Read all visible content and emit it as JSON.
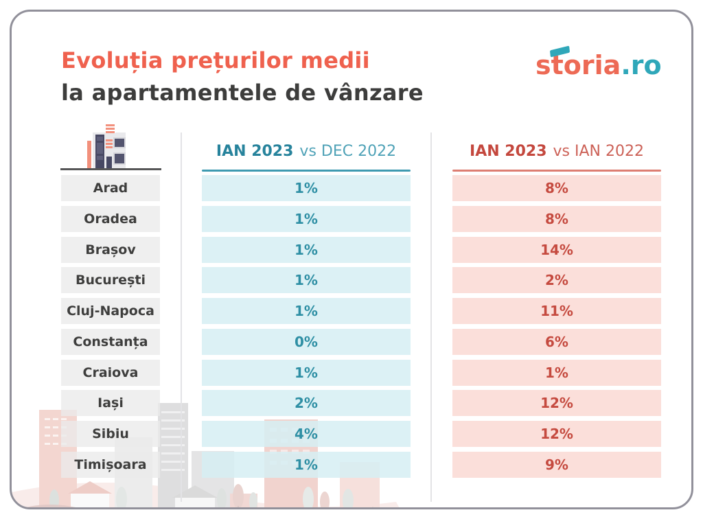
{
  "title": {
    "line1": "Evoluția prețurilor medii",
    "line2": "la apartamentele de vânzare"
  },
  "logo": {
    "brand": "storia",
    "tld": ".ro"
  },
  "table": {
    "col1_header": {
      "bold": "IAN 2023",
      "rest": "vs DEC 2022"
    },
    "col2_header": {
      "bold": "IAN 2023",
      "rest": "vs IAN 2022"
    }
  },
  "rows": [
    {
      "city": "Arad",
      "mom": "1%",
      "yoy": "8%"
    },
    {
      "city": "Oradea",
      "mom": "1%",
      "yoy": "8%"
    },
    {
      "city": "Brașov",
      "mom": "1%",
      "yoy": "14%"
    },
    {
      "city": "București",
      "mom": "1%",
      "yoy": "2%"
    },
    {
      "city": "Cluj-Napoca",
      "mom": "1%",
      "yoy": "11%"
    },
    {
      "city": "Constanța",
      "mom": "0%",
      "yoy": "6%"
    },
    {
      "city": "Craiova",
      "mom": "1%",
      "yoy": "1%"
    },
    {
      "city": "Iași",
      "mom": "2%",
      "yoy": "12%"
    },
    {
      "city": "Sibiu",
      "mom": "4%",
      "yoy": "12%"
    },
    {
      "city": "Timișoara",
      "mom": "1%",
      "yoy": "9%"
    }
  ],
  "colors": {
    "title_accent": "#ef614e",
    "title_dark": "#3d3d3c",
    "logo_coral": "#ed6a55",
    "logo_teal": "#2fa7b9",
    "teal_text": "#2e8fa4",
    "teal_bg": "#d6eef3",
    "red_text": "#c54a3f",
    "red_bg": "#fadbd5",
    "city_bg": "#ebebeb",
    "card_border": "#91909a"
  },
  "chart_data": {
    "type": "table",
    "title": "Evoluția prețurilor medii la apartamentele de vânzare",
    "columns": [
      "Oraș",
      "IAN 2023 vs DEC 2022",
      "IAN 2023 vs IAN 2022"
    ],
    "rows": [
      [
        "Arad",
        "1%",
        "8%"
      ],
      [
        "Oradea",
        "1%",
        "8%"
      ],
      [
        "Brașov",
        "1%",
        "14%"
      ],
      [
        "București",
        "1%",
        "2%"
      ],
      [
        "Cluj-Napoca",
        "1%",
        "11%"
      ],
      [
        "Constanța",
        "0%",
        "6%"
      ],
      [
        "Craiova",
        "1%",
        "1%"
      ],
      [
        "Iași",
        "2%",
        "12%"
      ],
      [
        "Sibiu",
        "4%",
        "12%"
      ],
      [
        "Timișoara",
        "1%",
        "9%"
      ]
    ]
  }
}
